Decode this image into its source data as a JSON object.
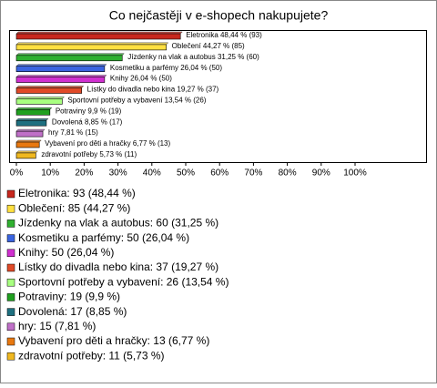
{
  "chart_data": {
    "type": "bar",
    "orientation": "horizontal",
    "title": "Co nejčastěji v e-shopech nakupujete?",
    "categories": [
      "Eletronika",
      "Oblečení",
      "Jízdenky na vlak a autobus",
      "Kosmetiku a parfémy",
      "Knihy",
      "Lístky do divadla nebo kina",
      "Sportovní potřeby a vybavení",
      "Potraviny",
      "Dovolená",
      "hry",
      "Vybavení pro děti a hračky",
      "zdravotní potřeby"
    ],
    "values": [
      48.44,
      44.27,
      31.25,
      26.04,
      26.04,
      19.27,
      13.54,
      9.9,
      8.85,
      7.81,
      6.77,
      5.73
    ],
    "value_labels": [
      "Eletronika 48,44 % (93)",
      "Oblečení 44,27 % (85)",
      "Jízdenky na vlak a autobus 31,25 % (60)",
      "Kosmetiku a parfémy 26,04 % (50)",
      "Knihy 26,04 % (50)",
      "Lístky do divadla nebo kina 19,27 % (37)",
      "Sportovní potřeby a vybavení 13,54 % (26)",
      "Potraviny 9,9 % (19)",
      "Dovolená 8,85 % (17)",
      "hry 7,81 % (15)",
      "Vybavení pro děti a hračky 6,77 % (13)",
      "zdravotní potřeby 5,73 % (11)"
    ],
    "legend_labels": [
      "Eletronika: 93 (48,44 %)",
      "Oblečení: 85 (44,27 %)",
      "Jízdenky na vlak a autobus: 60 (31,25 %)",
      "Kosmetiku a parfémy: 50 (26,04 %)",
      "Knihy: 50 (26,04 %)",
      "Lístky do divadla nebo kina: 37 (19,27 %)",
      "Sportovní potřeby a vybavení: 26 (13,54 %)",
      "Potraviny: 19 (9,9 %)",
      "Dovolená: 17 (8,85 %)",
      "hry: 15 (7,81 %)",
      "Vybavení pro děti a hračky: 13 (6,77 %)",
      "zdravotní potřeby: 11 (5,73 %)"
    ],
    "colors": [
      "#c8281e",
      "#ffe040",
      "#30b030",
      "#3a64e0",
      "#d030d0",
      "#e04a28",
      "#a8ff80",
      "#20a020",
      "#1e7080",
      "#c070c8",
      "#e87810",
      "#f0b820"
    ],
    "xlim": [
      0,
      100
    ],
    "xticks": [
      {
        "value": 0,
        "label": "0%"
      },
      {
        "value": 10,
        "label": "10%"
      },
      {
        "value": 20,
        "label": "20%"
      },
      {
        "value": 30,
        "label": "30%"
      },
      {
        "value": 40,
        "label": "40%"
      },
      {
        "value": 50,
        "label": "50%"
      },
      {
        "value": 60,
        "label": "60%"
      },
      {
        "value": 70,
        "label": "70%"
      },
      {
        "value": 80,
        "label": "80%"
      },
      {
        "value": 90,
        "label": "90%"
      },
      {
        "value": 100,
        "label": "100%"
      }
    ]
  }
}
